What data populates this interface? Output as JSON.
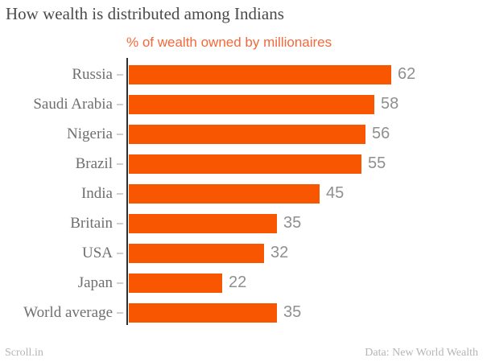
{
  "header": {
    "title": "How wealth is distributed among Indians",
    "subtitle": "% of wealth owned by millionaires"
  },
  "footer": {
    "left": "Scroll.in",
    "right": "Data: New World Wealth"
  },
  "colors": {
    "bar": "#f95602",
    "subtitle_text": "#f2693a",
    "title_text": "#4a4a4a",
    "category_label_text": "#6f6f6f",
    "value_label_text": "#8f8f8f",
    "axis_line": "#2f2f2f",
    "tick": "#cfcfcf",
    "footer_text": "#b5b5b5",
    "background": "#ffffff"
  },
  "chart_data": {
    "type": "bar",
    "orientation": "horizontal",
    "title": "How wealth is distributed among Indians",
    "subtitle": "% of wealth owned by millionaires",
    "categories": [
      "Russia",
      "Saudi Arabia",
      "Nigeria",
      "Brazil",
      "India",
      "Britain",
      "USA",
      "Japan",
      "World average"
    ],
    "values": [
      62,
      58,
      56,
      55,
      45,
      35,
      32,
      22,
      35
    ],
    "value_labels_shown": true,
    "xlim": [
      0,
      62
    ],
    "grid": false,
    "legend": false,
    "source_credit": "Data: New World Wealth",
    "publisher": "Scroll.in"
  }
}
